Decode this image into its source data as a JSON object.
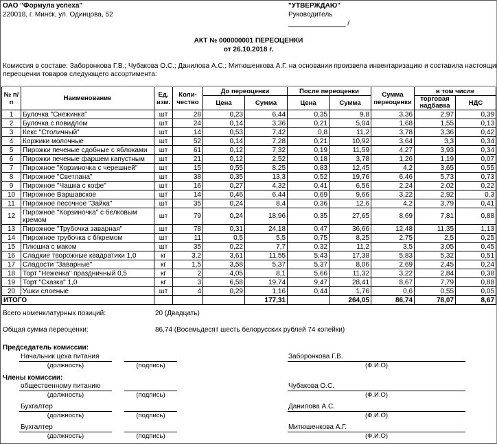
{
  "org": {
    "name": "ОАО \"Формула успеха\"",
    "address": "220018, г. Минск, ул. Одинцова, 52"
  },
  "approve": {
    "title": "\"УТВЕРЖДАЮ\"",
    "role": "Руководитель",
    "sign_line": "_______________ /"
  },
  "doc": {
    "title": "АКТ № 000000001 ПЕРЕОЦЕНКИ",
    "date": "от 26.10.2018 г."
  },
  "commission_text_1": "Комиссия в составе: Заборонкова Г.В.; Чубакова О.С.; Данилова А.С.; Митюшенкова А.Г. на основании  произвела инвентаризацию и составила настоящий акт",
  "commission_text_2": "переоценки товаров следующего ассортимента:",
  "table": {
    "headers": {
      "num": "№ п/п",
      "name": "Наименование",
      "unit": "Ед. изм.",
      "qty": "Коли-чество",
      "before": "До переоценки",
      "after": "После переоценки",
      "reval_sum": "Сумма переоценки",
      "incl": "в том числе",
      "price": "Цена",
      "sum": "Сумма",
      "markup": "торговая надбавка",
      "vat": "НДС"
    },
    "rows": [
      [
        "1",
        "Булочка \"Снежинка\"",
        "шт",
        "28",
        "0,23",
        "6,44",
        "0,35",
        "9,8",
        "3,36",
        "2,97",
        "0,39"
      ],
      [
        "2",
        "Булочка с повидлом",
        "шт",
        "24",
        "0,14",
        "3,36",
        "0,21",
        "5,04",
        "1,68",
        "1,55",
        "0,13"
      ],
      [
        "3",
        "Кекс \"Столичный\"",
        "шт",
        "14",
        "0,53",
        "7,42",
        "0,8",
        "11,2",
        "3,78",
        "3,36",
        "0,42"
      ],
      [
        "4",
        "Коржики молочные",
        "шт",
        "52",
        "0,14",
        "7,28",
        "0,21",
        "10,92",
        "3,64",
        "3,3",
        "0,34"
      ],
      [
        "5",
        "Пирожки печеные сдобные с яблоками",
        "шт",
        "61",
        "0,12",
        "7,32",
        "0,19",
        "11,59",
        "4,27",
        "3,93",
        "0,34"
      ],
      [
        "6",
        "Пирожки печеные фаршем капустным",
        "шт",
        "21",
        "0,12",
        "2,52",
        "0,18",
        "3,78",
        "1,26",
        "1,19",
        "0,07"
      ],
      [
        "7",
        "Пирожное \"Корзиночка с черешней\"",
        "шт",
        "15",
        "0,55",
        "8,25",
        "0,83",
        "12,45",
        "4,2",
        "3,65",
        "0,55"
      ],
      [
        "8",
        "Пирожное \"Светлана\"",
        "шт",
        "38",
        "0,35",
        "13,3",
        "0,52",
        "19,76",
        "6,46",
        "5,73",
        "0,73"
      ],
      [
        "9",
        "Пирожное \"Чашка с кофе\"",
        "шт",
        "16",
        "0,27",
        "4,32",
        "0,41",
        "6,56",
        "2,24",
        "2,02",
        "0,22"
      ],
      [
        "10",
        "Пирожное Варшавское",
        "шт",
        "14",
        "0,46",
        "6,44",
        "0,69",
        "9,66",
        "3,22",
        "2,92",
        "0,3"
      ],
      [
        "11",
        "Пирожное песочное \"Зайка\"",
        "шт",
        "35",
        "0,24",
        "8,4",
        "0,36",
        "12,6",
        "4,2",
        "3,79",
        "0,41"
      ],
      [
        "12",
        "Пирожное \"Корзиночка\" с белковым кремом",
        "шт",
        "79",
        "0,24",
        "18,96",
        "0,35",
        "27,65",
        "8,69",
        "7,81",
        "0,88"
      ],
      [
        "13",
        "Пирожное \"Трубочка заварная\"",
        "шт",
        "78",
        "0,31",
        "24,18",
        "0,47",
        "36,66",
        "12,48",
        "11,35",
        "1,13"
      ],
      [
        "14",
        "Пирожное трубочка с  б/кремом",
        "шт",
        "11",
        "0,5",
        "5,5",
        "0,75",
        "8,25",
        "2,75",
        "2,5",
        "0,25"
      ],
      [
        "15",
        "Плюшка с маком",
        "шт",
        "35",
        "0,22",
        "7,7",
        "0,32",
        "11,2",
        "3,5",
        "3,05",
        "0,45"
      ],
      [
        "16",
        "Сладкие творожные квадратики 1,0",
        "кг",
        "3,2",
        "3,61",
        "11,55",
        "5,43",
        "17,38",
        "5,83",
        "5,32",
        "0,51"
      ],
      [
        "17",
        "Сладости \"Заварные\"",
        "кг",
        "1,5",
        "3,58",
        "5,37",
        "5,37",
        "8,06",
        "2,69",
        "2,45",
        "0,24"
      ],
      [
        "18",
        "Торт \"Неженка\" праздничный 0,5",
        "кг",
        "2",
        "4,05",
        "8,1",
        "5,66",
        "11,32",
        "3,22",
        "2,84",
        "0,38"
      ],
      [
        "19",
        "Торт \"Сказка\" 1,0",
        "кг",
        "3",
        "6,58",
        "19,74",
        "9,47",
        "28,41",
        "8,67",
        "7,79",
        "0,88"
      ],
      [
        "20",
        "Ушки слоеные",
        "шт",
        "4",
        "0,29",
        "1,16",
        "0,44",
        "1,76",
        "0,6",
        "0,55",
        "0,05"
      ]
    ],
    "total": {
      "label": "ИТОГО",
      "sum_before": "177,31",
      "sum_after": "264,05",
      "reval_sum": "86,74",
      "markup": "78,07",
      "vat": "8,67"
    }
  },
  "summary": {
    "positions_label": "Всего номенклатурных позиций:",
    "positions_value": "20 (Двадцать)",
    "reval_label": "Общая сумма переоценки:",
    "reval_value": "86,74 (Восемьдесят шесть белорусских рублей 74 копейки)"
  },
  "signatures": {
    "chairman_title": "Председатель комиссии:",
    "members_title": "Члены комиссии:",
    "cap_position": "(должность)",
    "cap_sign": "(подпись)",
    "cap_fio": "(Ф.И.О)",
    "people": [
      {
        "position": "Начальник цеха питания",
        "fio": "Заборонкова Г.В."
      },
      {
        "position": "общественному питанию",
        "fio": "Чубакова О.С."
      },
      {
        "position": "Бухгалтер",
        "fio": "Данилова А.С."
      },
      {
        "position": "Бухгалтер",
        "fio": "Митюшенкова А.Г."
      }
    ]
  }
}
